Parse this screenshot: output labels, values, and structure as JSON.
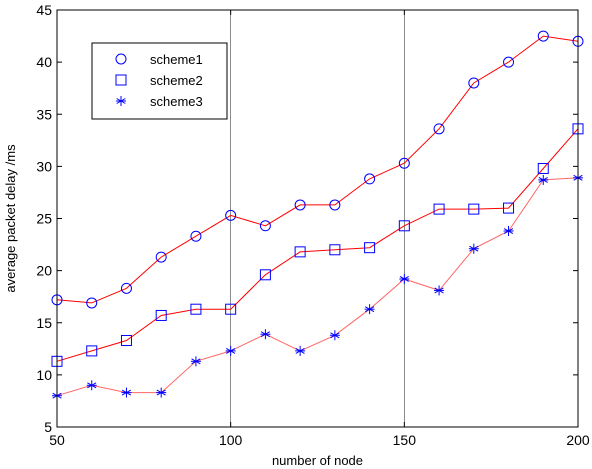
{
  "chart_data": {
    "type": "line",
    "xlabel": "number of node",
    "ylabel": "average packet delay /ms",
    "xlim": [
      50,
      200
    ],
    "ylim": [
      5,
      45
    ],
    "xticks": [
      50,
      100,
      150,
      200
    ],
    "yticks": [
      5,
      10,
      15,
      20,
      25,
      30,
      35,
      40,
      45
    ],
    "grid": "major",
    "legend_position": "top-left",
    "x": [
      50,
      60,
      70,
      80,
      90,
      100,
      110,
      120,
      130,
      140,
      150,
      160,
      170,
      180,
      190,
      200
    ],
    "series": [
      {
        "name": "scheme1",
        "marker": "circle",
        "marker_color": "#0000ff",
        "line_color": "#ff0000",
        "values": [
          17.2,
          16.9,
          18.3,
          21.3,
          23.3,
          25.3,
          24.3,
          26.3,
          26.3,
          28.8,
          30.3,
          33.6,
          38.0,
          40.0,
          42.5,
          42.0
        ]
      },
      {
        "name": "scheme2",
        "marker": "square",
        "marker_color": "#0000ff",
        "line_color": "#ff0000",
        "values": [
          11.3,
          12.3,
          13.3,
          15.7,
          16.3,
          16.3,
          19.6,
          21.8,
          22.0,
          22.2,
          24.3,
          25.9,
          25.9,
          26.0,
          29.8,
          33.6
        ]
      },
      {
        "name": "scheme3",
        "marker": "star",
        "marker_color": "#0000ff",
        "line_color": "#ff6666",
        "values": [
          8.0,
          9.0,
          8.3,
          8.3,
          11.3,
          12.3,
          13.9,
          12.3,
          13.8,
          16.3,
          19.2,
          18.1,
          22.1,
          23.8,
          28.7,
          28.9
        ]
      }
    ]
  }
}
